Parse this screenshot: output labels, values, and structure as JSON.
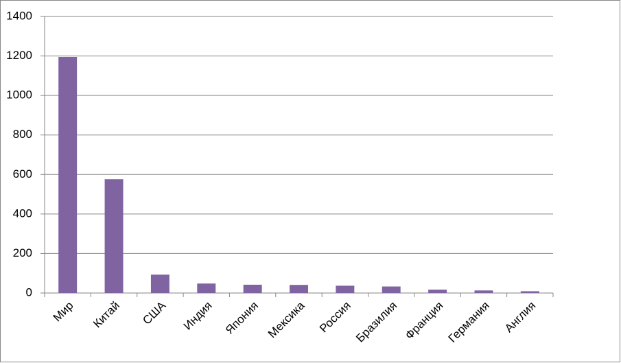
{
  "chart_data": {
    "type": "bar",
    "categories": [
      "Мир",
      "Китай",
      "США",
      "Индия",
      "Япония",
      "Мексика",
      "Россия",
      "Бразилия",
      "Франция",
      "Германия",
      "Англия"
    ],
    "values": [
      1195,
      576,
      93,
      48,
      42,
      41,
      37,
      33,
      17,
      13,
      9
    ],
    "color": "#8064a2",
    "ylim": [
      0,
      1400
    ],
    "yticks": [
      0,
      200,
      400,
      600,
      800,
      1000,
      1200,
      1400
    ],
    "grid": true
  }
}
